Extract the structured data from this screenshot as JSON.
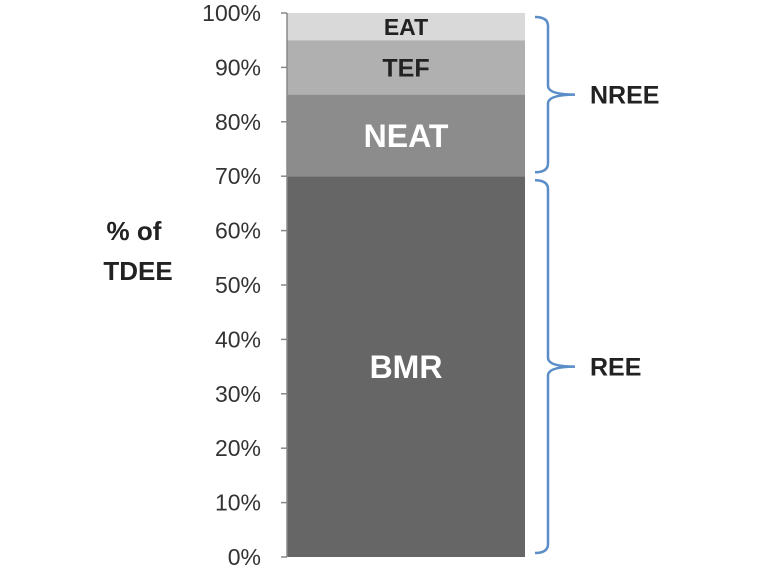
{
  "chart_data": {
    "type": "bar",
    "stacked": true,
    "categories": [
      ""
    ],
    "series": [
      {
        "name": "BMR",
        "values": [
          70
        ],
        "color": "#666666",
        "label_color": "#ffffff"
      },
      {
        "name": "NEAT",
        "values": [
          15
        ],
        "color": "#8c8c8c",
        "label_color": "#ffffff"
      },
      {
        "name": "TEF",
        "values": [
          10
        ],
        "color": "#b0b0b0",
        "label_color": "#222222"
      },
      {
        "name": "EAT",
        "values": [
          5
        ],
        "color": "#d9d9d9",
        "label_color": "#222222"
      }
    ],
    "ylabel_lines": [
      "% of",
      "TDEE"
    ],
    "ylim": [
      0,
      100
    ],
    "yticks": [
      0,
      10,
      20,
      30,
      40,
      50,
      60,
      70,
      80,
      90,
      100
    ],
    "ytick_labels": [
      "0%",
      "10%",
      "20%",
      "30%",
      "40%",
      "50%",
      "60%",
      "70%",
      "80%",
      "90%",
      "100%"
    ],
    "grid": false,
    "groups": [
      {
        "label": "NREE",
        "from": 70,
        "to": 100
      },
      {
        "label": "REE",
        "from": 0,
        "to": 70
      }
    ],
    "bracket_color": "#5b8ec9"
  }
}
